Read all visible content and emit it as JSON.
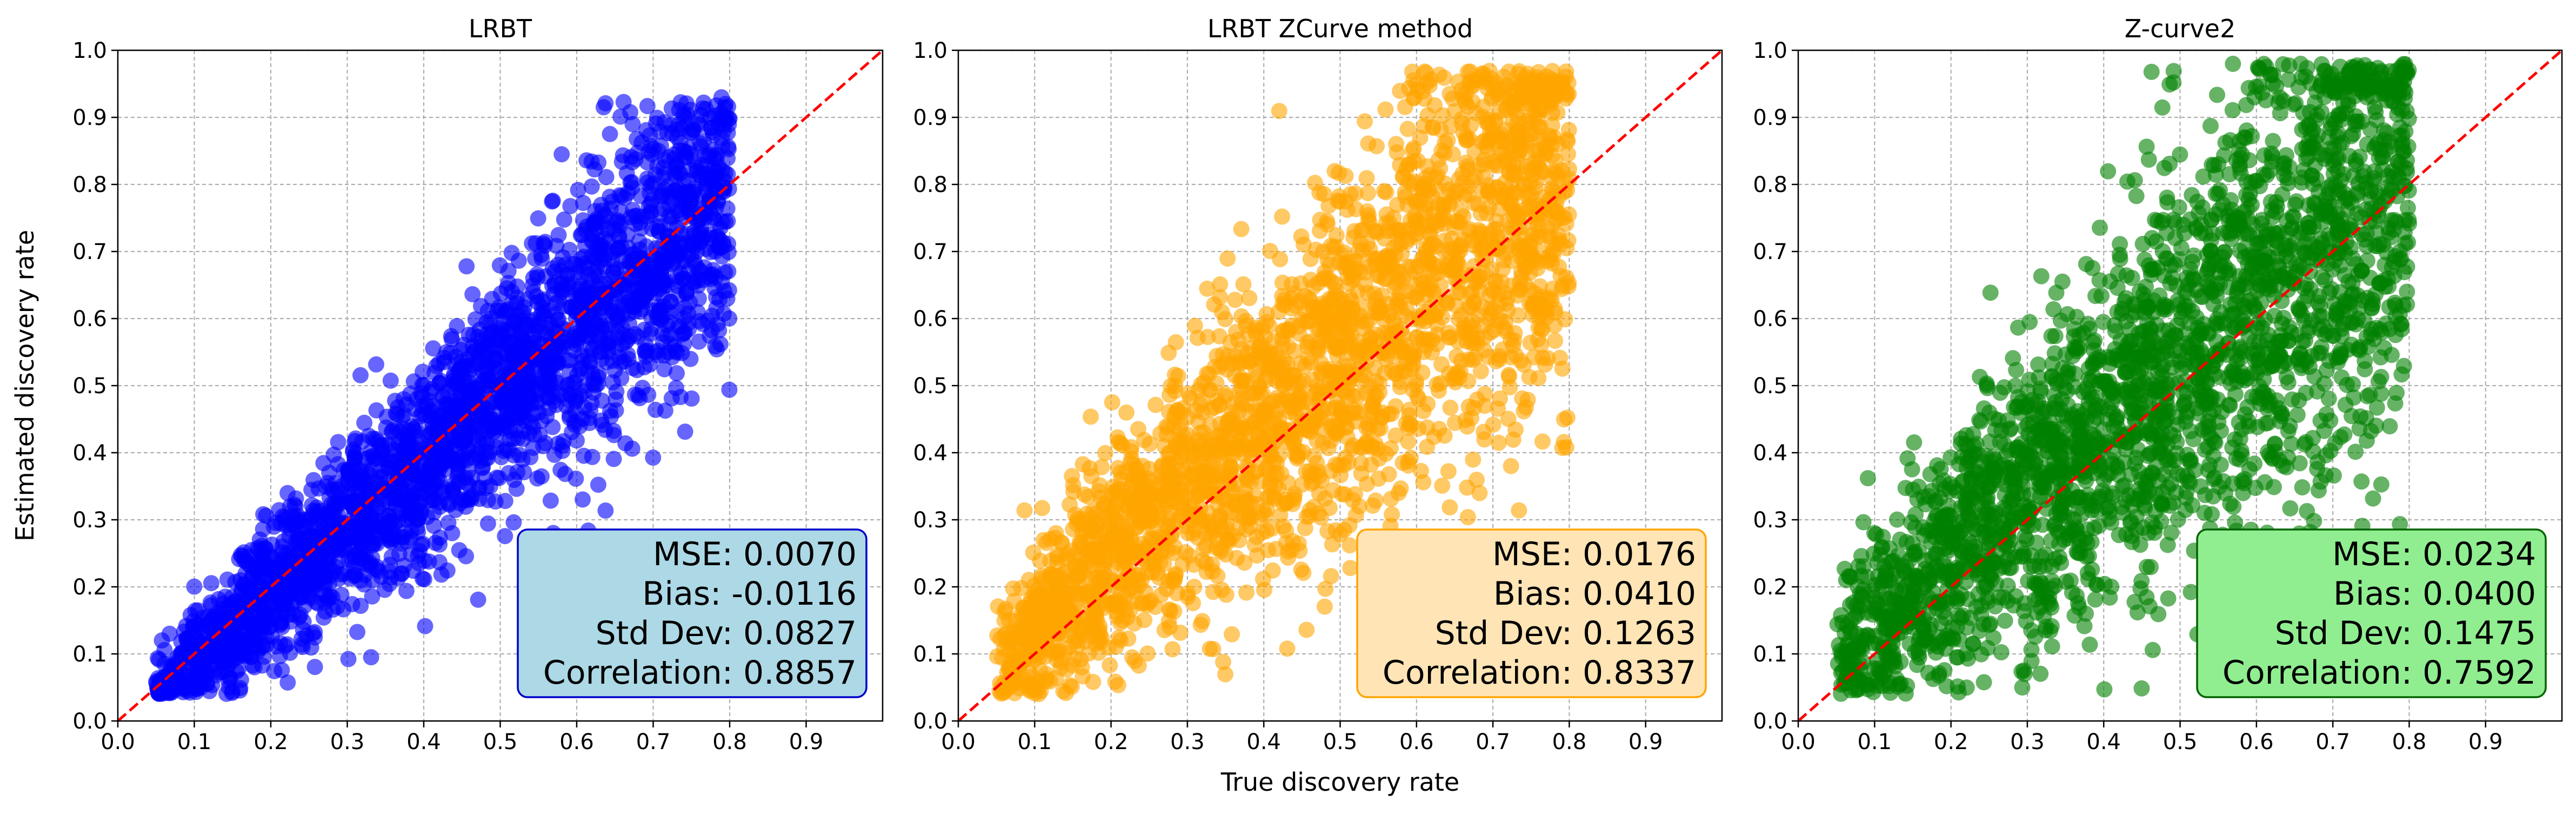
{
  "figure": {
    "ylabel": "Estimated discovery rate",
    "xlabel": "True discovery rate"
  },
  "chart_data": [
    {
      "type": "scatter",
      "title": "LRBT",
      "xlim": [
        0.0,
        1.0
      ],
      "ylim": [
        0.0,
        1.0
      ],
      "xticks": [
        "0.0",
        "0.1",
        "0.2",
        "0.3",
        "0.4",
        "0.5",
        "0.6",
        "0.7",
        "0.8",
        "0.9"
      ],
      "yticks": [
        "0.0",
        "0.1",
        "0.2",
        "0.3",
        "0.4",
        "0.5",
        "0.6",
        "0.7",
        "0.8",
        "0.9",
        "1.0"
      ],
      "grid": true,
      "point_color": "#0000ff",
      "box_face": "#add8e6",
      "box_edge": "#0000cc",
      "reference_line": {
        "from": [
          0.0,
          0.0
        ],
        "to": [
          1.0,
          1.0
        ],
        "color": "#ff0000",
        "style": "dashed"
      },
      "stats": [
        "MSE: 0.0070",
        "Bias: -0.0116",
        "Std Dev: 0.0827",
        "Correlation: 0.8857"
      ],
      "sample": {
        "n": 2600,
        "seed": 11,
        "slope": 1.0,
        "offset": -0.0116,
        "spread": 0.0827,
        "spread_growth": 0.05,
        "x_range": [
          0.05,
          0.8
        ],
        "y_range": [
          0.04,
          0.93
        ]
      }
    },
    {
      "type": "scatter",
      "title": "LRBT ZCurve method",
      "xlim": [
        0.0,
        1.0
      ],
      "ylim": [
        0.0,
        1.0
      ],
      "xticks": [
        "0.0",
        "0.1",
        "0.2",
        "0.3",
        "0.4",
        "0.5",
        "0.6",
        "0.7",
        "0.8",
        "0.9"
      ],
      "yticks": [
        "0.0",
        "0.1",
        "0.2",
        "0.3",
        "0.4",
        "0.5",
        "0.6",
        "0.7",
        "0.8",
        "0.9",
        "1.0"
      ],
      "grid": true,
      "point_color": "#ffa500",
      "box_face": "#ffe4b5",
      "box_edge": "#ffa500",
      "reference_line": {
        "from": [
          0.0,
          0.0
        ],
        "to": [
          1.0,
          1.0
        ],
        "color": "#ff0000",
        "style": "dashed"
      },
      "stats": [
        "MSE: 0.0176",
        "Bias: 0.0410",
        "Std Dev: 0.1263",
        "Correlation: 0.8337"
      ],
      "sample": {
        "n": 2600,
        "seed": 23,
        "slope": 1.0,
        "offset": 0.041,
        "spread": 0.1263,
        "spread_growth": 0.06,
        "x_range": [
          0.05,
          0.8
        ],
        "y_range": [
          0.04,
          0.97
        ]
      }
    },
    {
      "type": "scatter",
      "title": "Z-curve2",
      "xlim": [
        0.0,
        1.0
      ],
      "ylim": [
        0.0,
        1.0
      ],
      "xticks": [
        "0.0",
        "0.1",
        "0.2",
        "0.3",
        "0.4",
        "0.5",
        "0.6",
        "0.7",
        "0.8",
        "0.9"
      ],
      "yticks": [
        "0.0",
        "0.1",
        "0.2",
        "0.3",
        "0.4",
        "0.5",
        "0.6",
        "0.7",
        "0.8",
        "0.9",
        "1.0"
      ],
      "grid": true,
      "point_color": "#008000",
      "box_face": "#90ee90",
      "box_edge": "#006400",
      "reference_line": {
        "from": [
          0.0,
          0.0
        ],
        "to": [
          1.0,
          1.0
        ],
        "color": "#ff0000",
        "style": "dashed"
      },
      "stats": [
        "MSE: 0.0234",
        "Bias: 0.0400",
        "Std Dev: 0.1475",
        "Correlation: 0.7592"
      ],
      "sample": {
        "n": 2600,
        "seed": 37,
        "slope": 1.0,
        "offset": 0.04,
        "spread": 0.1475,
        "spread_growth": 0.07,
        "x_range": [
          0.05,
          0.8
        ],
        "y_range": [
          0.04,
          0.98
        ]
      }
    }
  ]
}
